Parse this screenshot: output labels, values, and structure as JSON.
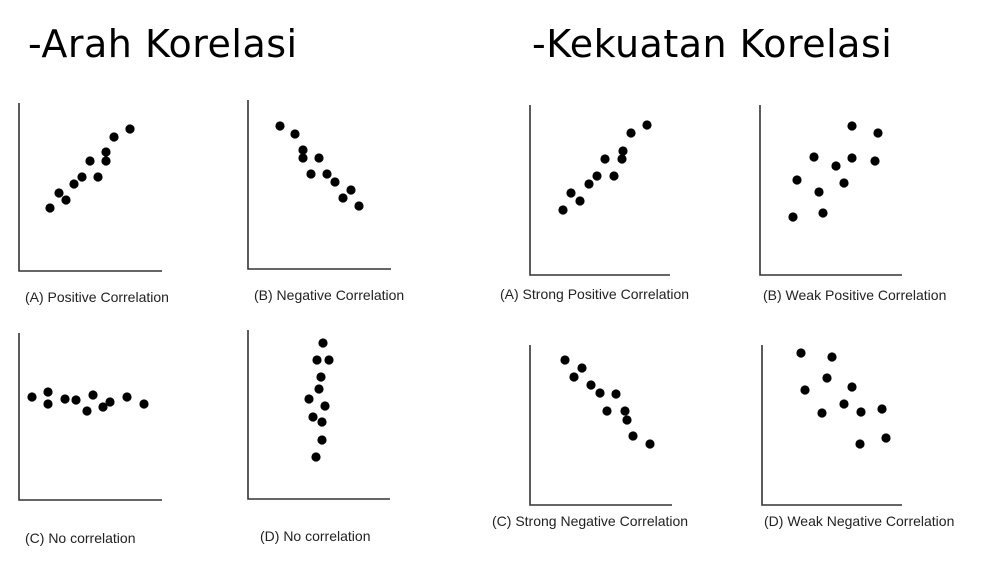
{
  "titles": {
    "left": "-Arah Korelasi",
    "right": "-Kekuatan Korelasi"
  },
  "panels": [
    {
      "caption": "(A) Positive Correlation"
    },
    {
      "caption": "(B) Negative Correlation"
    },
    {
      "caption": "(C) No correlation"
    },
    {
      "caption": "(D) No correlation"
    },
    {
      "caption": "(A) Strong Positive Correlation"
    },
    {
      "caption": "(B) Weak Positive Correlation"
    },
    {
      "caption": "(C) Strong Negative Correlation"
    },
    {
      "caption": "(D) Weak Negative Correlation"
    }
  ],
  "colors": {
    "dot": "#000000",
    "axis": "#333333"
  }
}
